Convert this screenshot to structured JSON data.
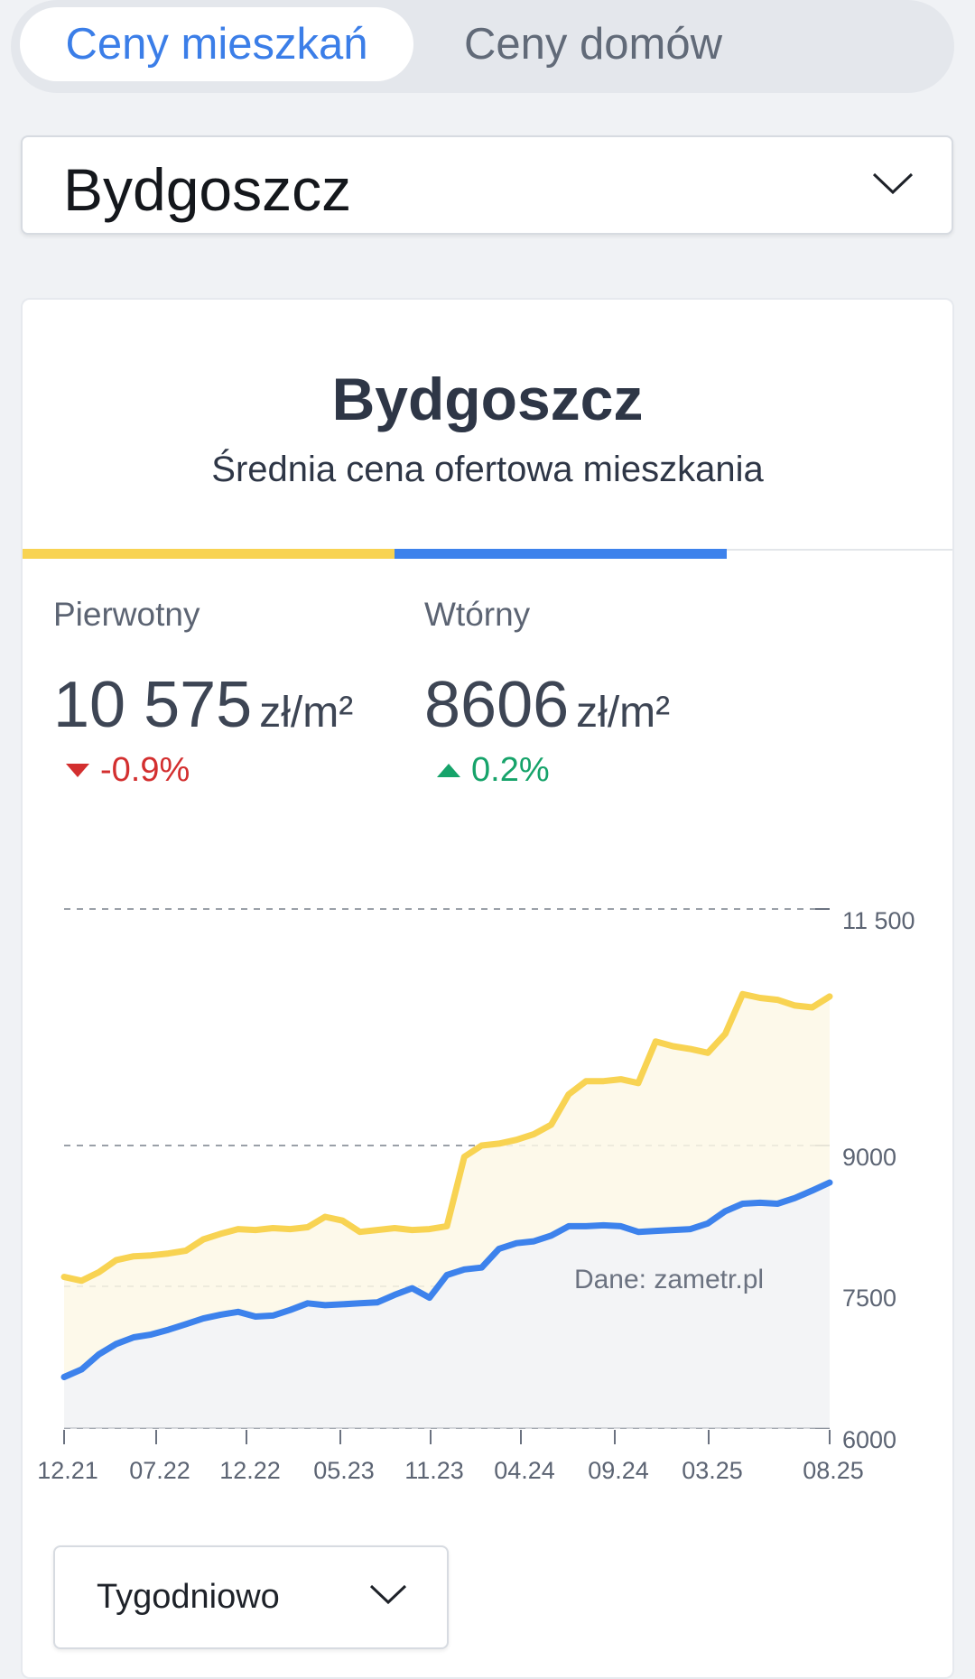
{
  "tabs": [
    {
      "label": "Ceny mieszkań",
      "active": true
    },
    {
      "label": "Ceny domów",
      "active": false
    }
  ],
  "city_select": {
    "value": "Bydgoszcz"
  },
  "card": {
    "title": "Bydgoszcz",
    "subtitle": "Średnia cena ofertowa mieszkania",
    "metrics": [
      {
        "label": "Pierwotny",
        "value": "10 575",
        "unit": "zł/m²",
        "change": "-0.9%",
        "direction": "down",
        "color": "#f8d352"
      },
      {
        "label": "Wtórny",
        "value": "8606",
        "unit": "zł/m²",
        "change": "0.2%",
        "direction": "up",
        "color": "#3d82ec"
      }
    ]
  },
  "frequency_select": {
    "value": "Tygodniowo"
  },
  "colors": {
    "accent": "#3b7ee8",
    "primary_series": "#f8d352",
    "secondary_series": "#3d82ec",
    "negative": "#d32f2f",
    "positive": "#16a36a"
  },
  "chart_data": {
    "type": "line",
    "title": "",
    "xlabel": "",
    "ylabel": "",
    "x_labels": [
      "12.21",
      "07.22",
      "12.22",
      "05.23",
      "11.23",
      "04.24",
      "09.24",
      "03.25",
      "08.25"
    ],
    "y_ticks": [
      6000,
      7500,
      9000,
      11500
    ],
    "y_tick_labels": [
      "6000",
      "7500",
      "9000",
      "11 500"
    ],
    "watermark": "Dane: zametr.pl",
    "grid": true,
    "series": [
      {
        "name": "Pierwotny",
        "color": "#f8d352",
        "points": [
          [
            "12.21",
            7600
          ],
          [
            "01.22",
            7560
          ],
          [
            "02.22",
            7650
          ],
          [
            "03.22",
            7780
          ],
          [
            "04.22",
            7820
          ],
          [
            "05.22",
            7830
          ],
          [
            "06.22",
            7850
          ],
          [
            "07.22",
            7880
          ],
          [
            "08.22",
            8000
          ],
          [
            "09.22",
            8060
          ],
          [
            "10.22",
            8110
          ],
          [
            "11.22",
            8100
          ],
          [
            "12.22",
            8120
          ],
          [
            "01.23",
            8110
          ],
          [
            "02.23",
            8130
          ],
          [
            "03.23",
            8240
          ],
          [
            "04.23",
            8200
          ],
          [
            "05.23",
            8080
          ],
          [
            "06.23",
            8100
          ],
          [
            "07.23",
            8120
          ],
          [
            "08.23",
            8100
          ],
          [
            "09.23",
            8110
          ],
          [
            "10.23",
            8140
          ],
          [
            "11.23",
            8880
          ],
          [
            "12.23",
            9000
          ],
          [
            "01.24",
            9020
          ],
          [
            "02.24",
            9060
          ],
          [
            "03.24",
            9120
          ],
          [
            "04.24",
            9220
          ],
          [
            "05.24",
            9540
          ],
          [
            "06.24",
            9680
          ],
          [
            "07.24",
            9680
          ],
          [
            "08.24",
            9700
          ],
          [
            "09.24",
            9660
          ],
          [
            "10.24",
            10100
          ],
          [
            "11.24",
            10050
          ],
          [
            "12.24",
            10020
          ],
          [
            "01.25",
            9980
          ],
          [
            "02.25",
            10180
          ],
          [
            "03.25",
            10600
          ],
          [
            "04.25",
            10560
          ],
          [
            "05.25",
            10540
          ],
          [
            "06.25",
            10480
          ],
          [
            "07.25",
            10460
          ],
          [
            "08.25",
            10575
          ]
        ]
      },
      {
        "name": "Wtórny",
        "color": "#3d82ec",
        "points": [
          [
            "12.21",
            6540
          ],
          [
            "01.22",
            6620
          ],
          [
            "02.22",
            6780
          ],
          [
            "03.22",
            6890
          ],
          [
            "04.22",
            6960
          ],
          [
            "05.22",
            6990
          ],
          [
            "06.22",
            7040
          ],
          [
            "07.22",
            7100
          ],
          [
            "08.22",
            7160
          ],
          [
            "09.22",
            7200
          ],
          [
            "10.22",
            7230
          ],
          [
            "11.22",
            7180
          ],
          [
            "12.22",
            7190
          ],
          [
            "01.23",
            7250
          ],
          [
            "02.23",
            7320
          ],
          [
            "03.23",
            7300
          ],
          [
            "04.23",
            7310
          ],
          [
            "05.23",
            7320
          ],
          [
            "06.23",
            7330
          ],
          [
            "07.23",
            7410
          ],
          [
            "08.23",
            7480
          ],
          [
            "09.23",
            7380
          ],
          [
            "10.23",
            7620
          ],
          [
            "11.23",
            7680
          ],
          [
            "12.23",
            7700
          ],
          [
            "01.24",
            7900
          ],
          [
            "02.24",
            7960
          ],
          [
            "03.24",
            7980
          ],
          [
            "04.24",
            8040
          ],
          [
            "05.24",
            8140
          ],
          [
            "06.24",
            8140
          ],
          [
            "07.24",
            8150
          ],
          [
            "08.24",
            8140
          ],
          [
            "09.24",
            8080
          ],
          [
            "10.24",
            8090
          ],
          [
            "11.24",
            8100
          ],
          [
            "12.24",
            8110
          ],
          [
            "01.25",
            8170
          ],
          [
            "02.25",
            8300
          ],
          [
            "03.25",
            8380
          ],
          [
            "04.25",
            8390
          ],
          [
            "05.25",
            8380
          ],
          [
            "06.25",
            8440
          ],
          [
            "07.25",
            8520
          ],
          [
            "08.25",
            8606
          ]
        ]
      }
    ]
  }
}
